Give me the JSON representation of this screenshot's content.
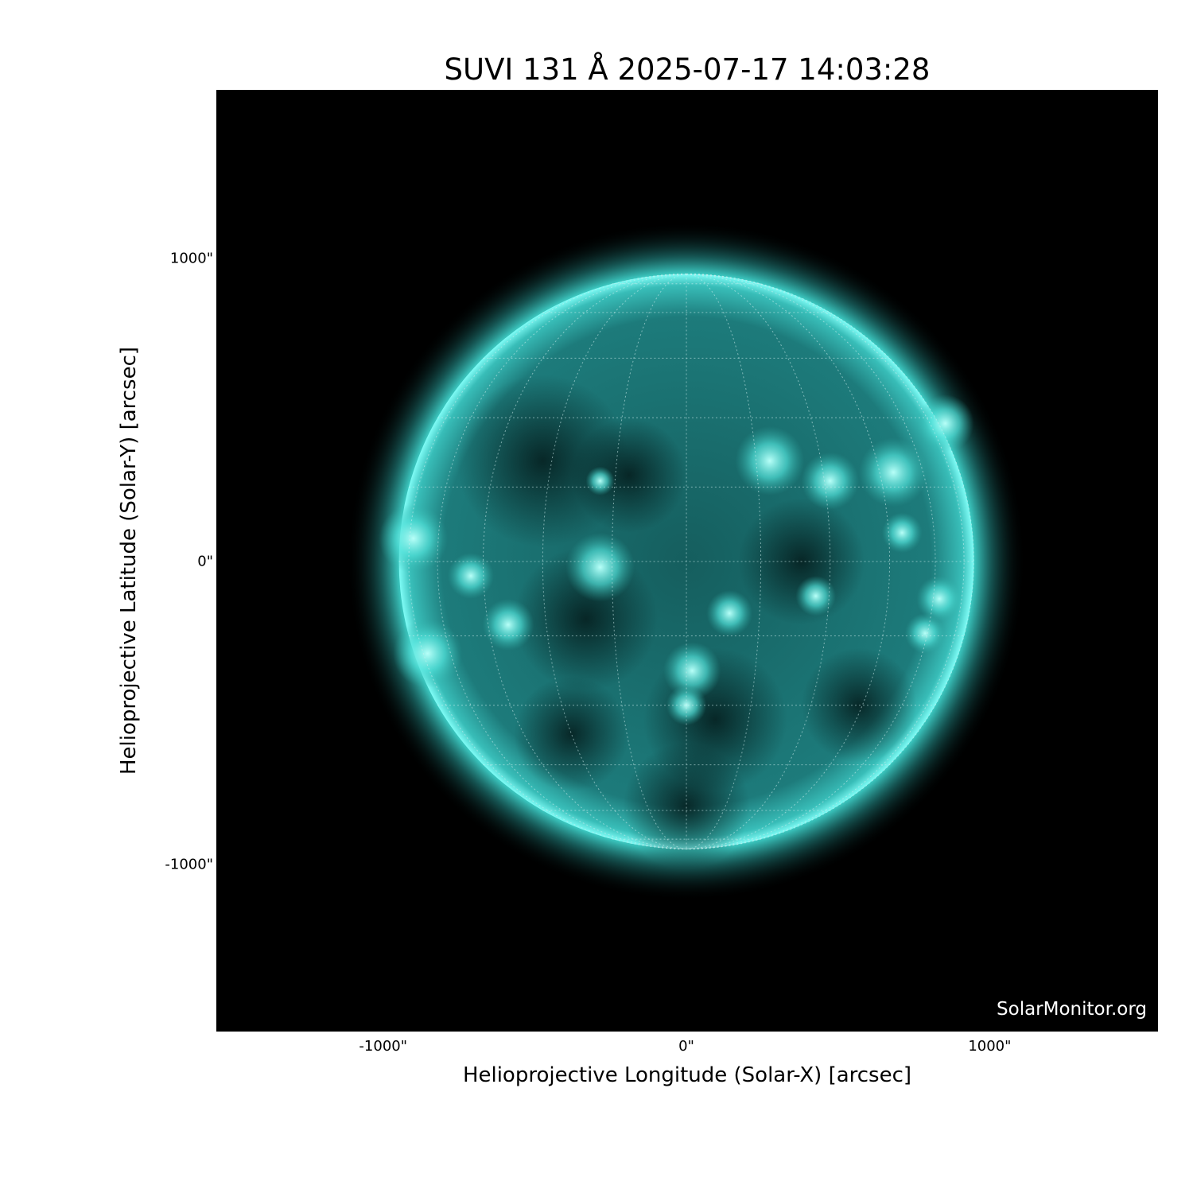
{
  "chart_data": {
    "type": "heatmap",
    "title": "SUVI 131 Å 2025-07-17 14:03:28",
    "xlabel": "Helioprojective Longitude (Solar-X) [arcsec]",
    "ylabel": "Helioprojective Latitude (Solar-Y) [arcsec]",
    "xlim": [
      -1550,
      1555
    ],
    "ylim": [
      -1550,
      1555
    ],
    "xticks": [
      {
        "value": -1000,
        "label": "-1000\""
      },
      {
        "value": 0,
        "label": "0\""
      },
      {
        "value": 1000,
        "label": "1000\""
      }
    ],
    "yticks": [
      {
        "value": 1000,
        "label": "1000\""
      },
      {
        "value": 0,
        "label": "0\""
      },
      {
        "value": -1000,
        "label": "-1000\""
      }
    ],
    "solar_radius_arcsec": 948,
    "grid": "heliographic lat/lon every 15°",
    "colormap": "black-to-cyan",
    "disk_color": "#1e8c8c",
    "limb_color": "#5ff5f0",
    "watermark": "SolarMonitor.org"
  }
}
